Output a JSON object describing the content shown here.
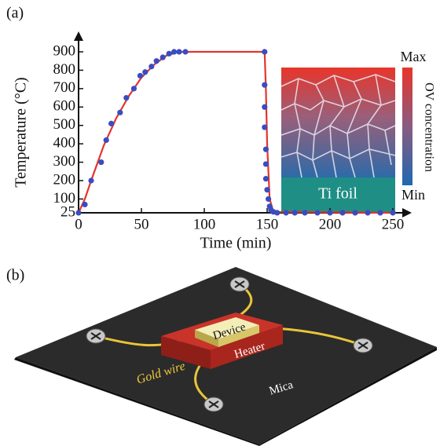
{
  "panel_labels": [
    "(a)",
    "(b)"
  ],
  "chart_data": {
    "type": "line",
    "x_label": "Time (min)",
    "y_label": "Temperature (°C)",
    "xlim": [
      0,
      250
    ],
    "ylim": [
      25,
      900
    ],
    "xticks": [
      0,
      50,
      100,
      150,
      200,
      250
    ],
    "yticks": [
      25,
      100,
      200,
      300,
      400,
      500,
      600,
      700,
      800,
      900
    ],
    "series": [
      {
        "type": "line",
        "color": "#e3342b",
        "x": [
          0,
          5,
          10,
          20,
          30,
          40,
          50,
          60,
          70,
          80,
          148,
          149,
          150,
          152,
          155,
          250
        ],
        "values": [
          25,
          100,
          200,
          390,
          540,
          660,
          760,
          830,
          880,
          900,
          900,
          700,
          400,
          100,
          30,
          25
        ]
      },
      {
        "type": "scatter",
        "color": "#3b4cc0",
        "x": [
          0,
          5,
          10,
          18,
          22,
          26,
          33,
          38,
          44,
          49,
          53,
          58,
          62,
          67,
          72,
          76,
          80,
          85,
          148,
          148,
          148,
          148,
          149,
          149,
          149,
          150,
          151,
          152,
          153,
          155,
          158,
          165,
          172,
          180,
          190,
          200,
          210,
          220,
          230,
          240,
          250
        ],
        "values": [
          25,
          70,
          200,
          300,
          420,
          510,
          570,
          650,
          700,
          770,
          790,
          820,
          850,
          870,
          890,
          900,
          900,
          900,
          900,
          720,
          600,
          490,
          370,
          290,
          210,
          150,
          100,
          60,
          40,
          30,
          25,
          25,
          25,
          25,
          25,
          25,
          25,
          25,
          25,
          25,
          25
        ]
      }
    ],
    "inset": {
      "layer_label": "Ti foil",
      "colorbar_max": "Max",
      "colorbar_min": "Min",
      "colorbar_label": "OV concentration"
    }
  },
  "diagram": {
    "device": "Device",
    "heater": "Heater",
    "wire": "Gold wire",
    "substrate": "Mica"
  }
}
